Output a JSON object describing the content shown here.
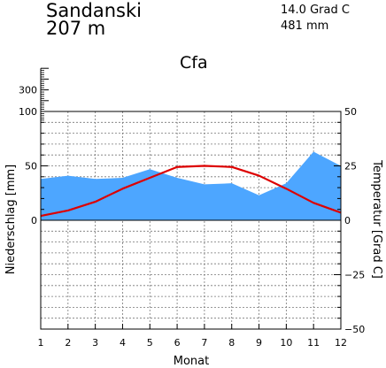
{
  "header": {
    "station": "Sandanski",
    "elevation": "207 m",
    "mean_temperature": "14.0 Grad C",
    "annual_precipitation": "481 mm",
    "climate_class": "Cfa"
  },
  "colors": {
    "precipitation_fill": "#4da6ff",
    "temperature_line": "#dd0000",
    "grid": "#777777",
    "axis": "#000000"
  },
  "chart_data": {
    "type": "area",
    "title": "Sandanski",
    "xlabel": "Monat",
    "ylabel_left": "Niederschlag [mm]",
    "ylabel_right": "Temperatur [Grad C]",
    "x": [
      1,
      2,
      3,
      4,
      5,
      6,
      7,
      8,
      9,
      10,
      11,
      12
    ],
    "x_ticks": [
      "1",
      "2",
      "3",
      "4",
      "5",
      "6",
      "7",
      "8",
      "9",
      "10",
      "11",
      "12"
    ],
    "left_ticks": [
      "0",
      "50",
      "100",
      "300"
    ],
    "right_ticks": [
      "-50",
      "-25",
      "0",
      "25",
      "50"
    ],
    "left_ylim": [
      -100,
      100
    ],
    "right_ylim": [
      -50,
      50
    ],
    "precip_upper_ticks": [
      100,
      200,
      300,
      400,
      500
    ],
    "grid": true,
    "series": [
      {
        "name": "Niederschlag",
        "axis": "left",
        "kind": "area",
        "values": [
          38,
          41,
          38,
          39,
          47,
          39,
          33,
          34,
          23,
          34,
          63,
          50
        ]
      },
      {
        "name": "Temperatur",
        "axis": "right",
        "kind": "line",
        "values": [
          2.0,
          4.5,
          8.5,
          14.5,
          19.5,
          24.5,
          25.0,
          24.5,
          20.5,
          14.5,
          8.0,
          3.5
        ]
      }
    ]
  }
}
